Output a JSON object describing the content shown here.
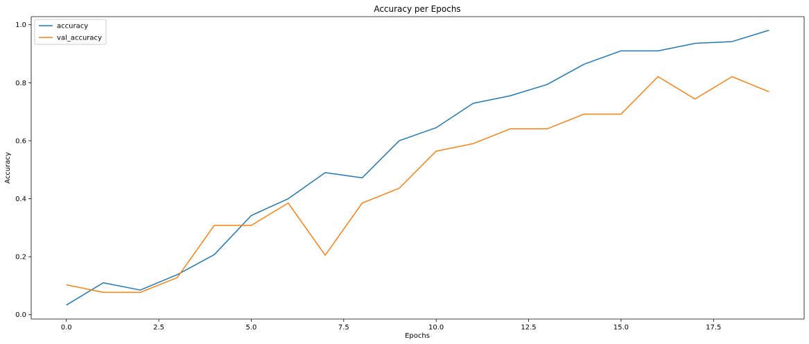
{
  "chart_data": {
    "type": "line",
    "title": "Accuracy per Epochs",
    "xlabel": "Epochs",
    "ylabel": "Accuracy",
    "xlim": [
      -0.95,
      19.95
    ],
    "ylim": [
      -0.015,
      1.028
    ],
    "xticks": [
      0.0,
      2.5,
      5.0,
      7.5,
      10.0,
      12.5,
      15.0,
      17.5
    ],
    "xtick_labels": [
      "0.0",
      "2.5",
      "5.0",
      "7.5",
      "10.0",
      "12.5",
      "15.0",
      "17.5"
    ],
    "yticks": [
      0.0,
      0.2,
      0.4,
      0.6,
      0.8,
      1.0
    ],
    "ytick_labels": [
      "0.0",
      "0.2",
      "0.4",
      "0.6",
      "0.8",
      "1.0"
    ],
    "grid": false,
    "legend_position": "upper-left",
    "x": [
      0,
      1,
      2,
      3,
      4,
      5,
      6,
      7,
      8,
      9,
      10,
      11,
      12,
      13,
      14,
      15,
      16,
      17,
      18,
      19
    ],
    "series": [
      {
        "name": "accuracy",
        "color": "#1f77b4",
        "values": [
          0.033,
          0.11,
          0.085,
          0.138,
          0.207,
          0.342,
          0.4,
          0.49,
          0.472,
          0.6,
          0.645,
          0.729,
          0.755,
          0.794,
          0.864,
          0.91,
          0.91,
          0.936,
          0.942,
          0.981
        ]
      },
      {
        "name": "val_accuracy",
        "color": "#ff7f0e",
        "values": [
          0.103,
          0.077,
          0.077,
          0.128,
          0.308,
          0.308,
          0.385,
          0.205,
          0.385,
          0.436,
          0.564,
          0.59,
          0.641,
          0.641,
          0.692,
          0.692,
          0.821,
          0.744,
          0.821,
          0.769
        ]
      }
    ]
  }
}
